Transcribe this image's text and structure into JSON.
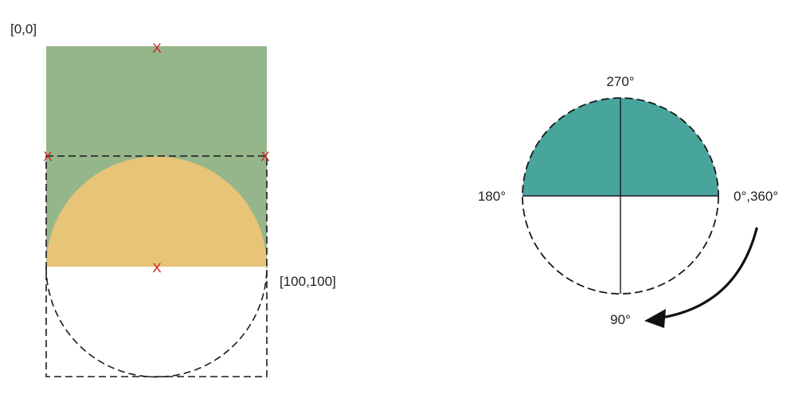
{
  "left_diagram": {
    "origin_label": "[0,0]",
    "corner_label": "[100,100]",
    "marker_symbol": "X",
    "colors": {
      "rect_fill": "#95b68a",
      "semicircle_fill": "#e8c478",
      "marker": "#cc1f1f",
      "outline": "#1a1a1a"
    }
  },
  "right_diagram": {
    "angle_labels": {
      "top": "270°",
      "left": "180°",
      "right": "0°,360°",
      "bottom": "90°"
    },
    "colors": {
      "semicircle_fill": "#48a59c",
      "outline": "#1a1a1a",
      "arrow": "#111111"
    }
  }
}
